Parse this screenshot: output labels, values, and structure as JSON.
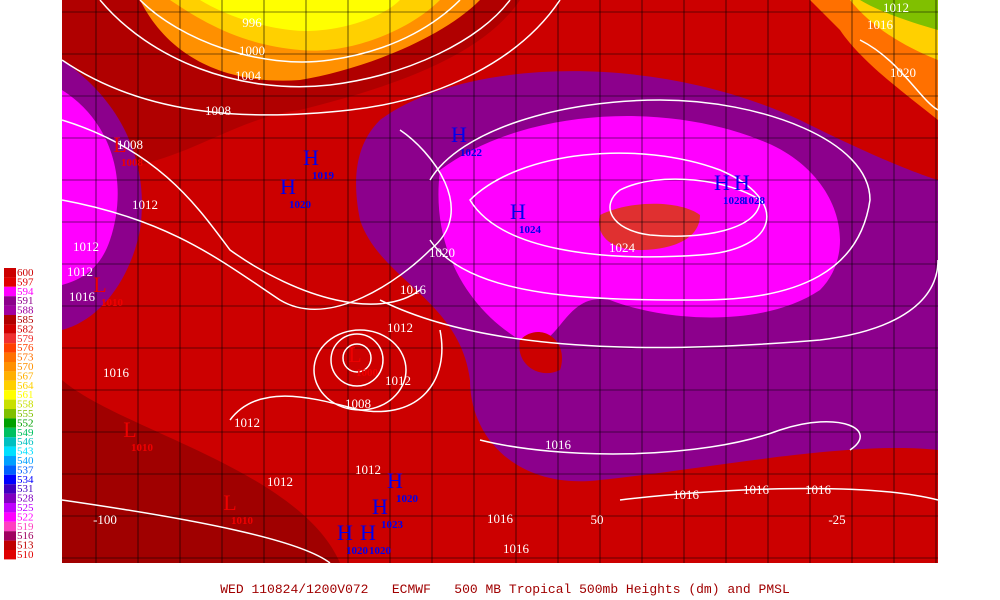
{
  "caption": "WED 110824/1200V072   ECMWF   500 MB Tropical 500mb Heights (dm) and PMSL",
  "legend": [
    {
      "label": "600",
      "color": "#cc0000"
    },
    {
      "label": "597",
      "color": "#e00000"
    },
    {
      "label": "594",
      "color": "#ff00ff"
    },
    {
      "label": "591",
      "color": "#8c008c"
    },
    {
      "label": "588",
      "color": "#a000a0"
    },
    {
      "label": "585",
      "color": "#b00000"
    },
    {
      "label": "582",
      "color": "#d00000"
    },
    {
      "label": "579",
      "color": "#f03030"
    },
    {
      "label": "576",
      "color": "#ff4000"
    },
    {
      "label": "573",
      "color": "#ff7000"
    },
    {
      "label": "570",
      "color": "#ff9000"
    },
    {
      "label": "567",
      "color": "#ffb000"
    },
    {
      "label": "564",
      "color": "#ffd000"
    },
    {
      "label": "561",
      "color": "#ffff00"
    },
    {
      "label": "558",
      "color": "#c8e000"
    },
    {
      "label": "555",
      "color": "#80c000"
    },
    {
      "label": "552",
      "color": "#00a000"
    },
    {
      "label": "549",
      "color": "#00c060"
    },
    {
      "label": "546",
      "color": "#00c0c0"
    },
    {
      "label": "543",
      "color": "#00e0ff"
    },
    {
      "label": "540",
      "color": "#00a0ff"
    },
    {
      "label": "537",
      "color": "#0060ff"
    },
    {
      "label": "534",
      "color": "#0000ff"
    },
    {
      "label": "531",
      "color": "#4000c0"
    },
    {
      "label": "528",
      "color": "#8000c0"
    },
    {
      "label": "525",
      "color": "#c000ff"
    },
    {
      "label": "522",
      "color": "#ff00ff"
    },
    {
      "label": "519",
      "color": "#ff40c0"
    },
    {
      "label": "516",
      "color": "#a00060"
    },
    {
      "label": "513",
      "color": "#c00000"
    },
    {
      "label": "510",
      "color": "#e00000"
    }
  ],
  "longitude_labels": [
    "-100",
    "50",
    "-25"
  ],
  "isobar_labels": [
    "996",
    "1000",
    "1004",
    "1008",
    "1008",
    "1012",
    "1012",
    "1012",
    "1016",
    "1020",
    "1016",
    "1024",
    "1012",
    "1012",
    "1008",
    "1012",
    "1016",
    "1016",
    "1016",
    "1016",
    "1012",
    "1016",
    "1020",
    "1016",
    "1016",
    "1012",
    "1012",
    "1016"
  ],
  "pressure_centers": [
    {
      "symbol": "H",
      "value": "1019"
    },
    {
      "symbol": "H",
      "value": "1020"
    },
    {
      "symbol": "H",
      "value": "1022"
    },
    {
      "symbol": "H",
      "value": "1024"
    },
    {
      "symbol": "H",
      "value": "1028"
    },
    {
      "symbol": "H",
      "value": "1028"
    },
    {
      "symbol": "H",
      "value": "1020"
    },
    {
      "symbol": "H",
      "value": "1023"
    },
    {
      "symbol": "H",
      "value": "1020"
    },
    {
      "symbol": "H",
      "value": "1020"
    },
    {
      "symbol": "L",
      "value": "1008"
    },
    {
      "symbol": "L",
      "value": "1010"
    },
    {
      "symbol": "L",
      "value": "1000"
    },
    {
      "symbol": "L",
      "value": "1010"
    },
    {
      "symbol": "L",
      "value": "1010"
    }
  ]
}
